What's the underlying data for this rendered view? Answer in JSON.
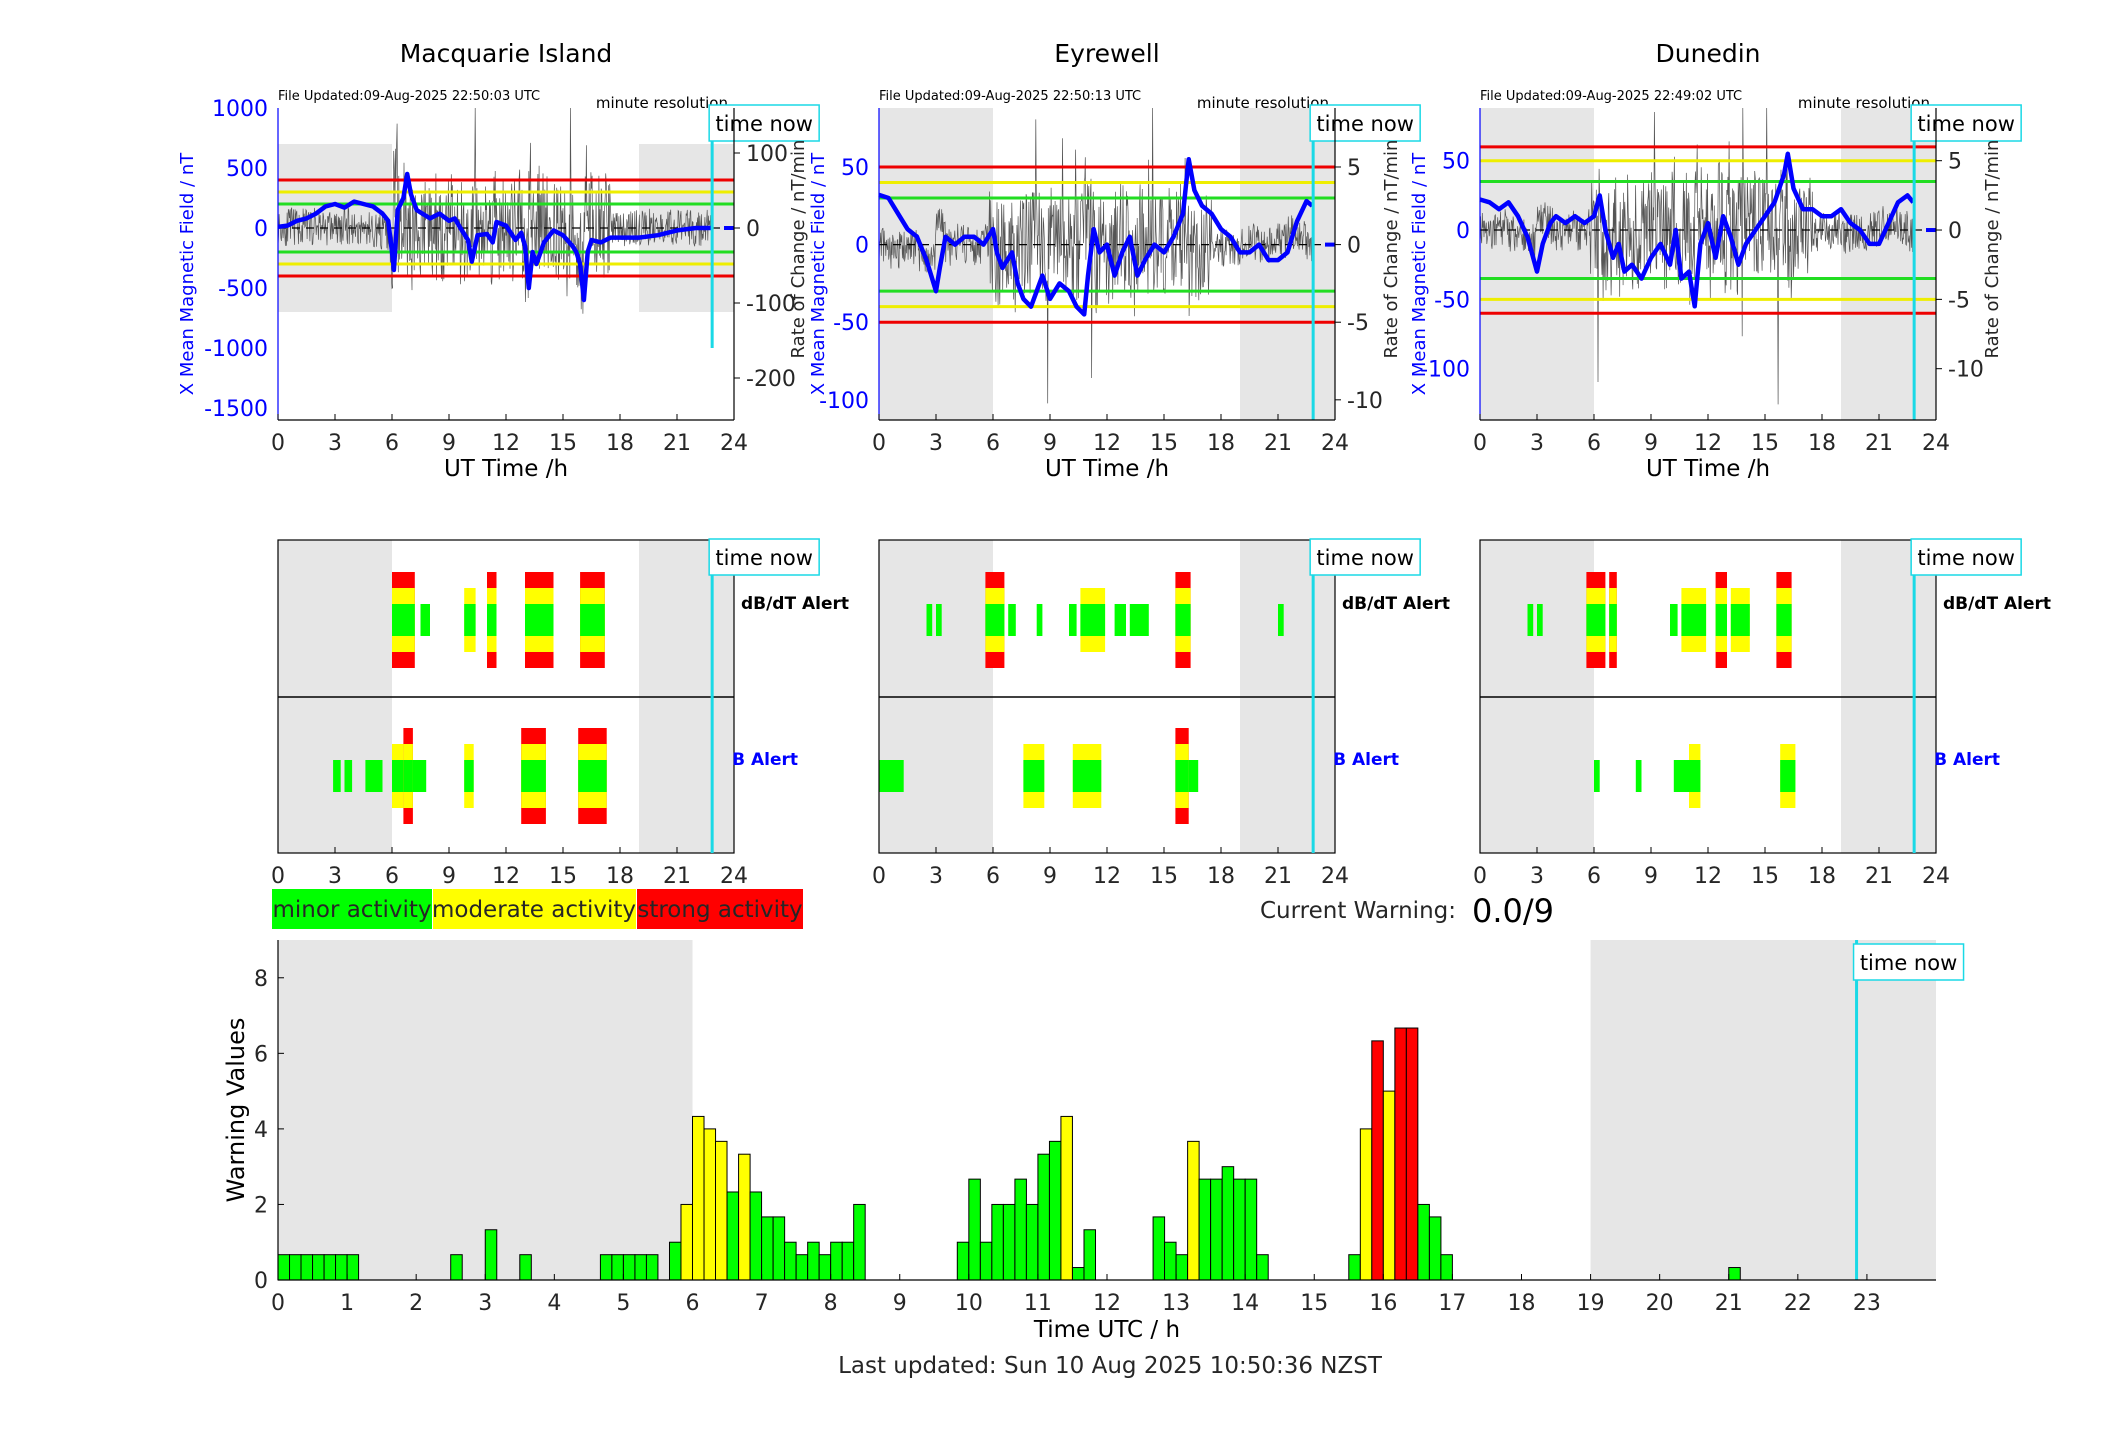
{
  "time_now_label": "time now",
  "legend": {
    "minor": "minor activity",
    "moderate": "moderate activity",
    "strong": "strong activity"
  },
  "current_warning": {
    "label": "Current Warning:",
    "value": "0.0/9"
  },
  "last_updated": "Last updated: Sun 10 Aug 2025 10:50:36 NZST",
  "colors": {
    "minor": "#00ff00",
    "moderate": "#ffff00",
    "strong": "#ff0000",
    "field_line": "#0000ff",
    "time_now": "#1ad9e6",
    "shade": "#e6e6e6"
  },
  "chart_data": [
    {
      "type": "line",
      "title": "Macquarie Island",
      "file_updated": "File Updated:09-Aug-2025 22:50:03 UTC",
      "resolution": "minute resolution",
      "xlabel": "UT Time /h",
      "ylabel_left": "X Mean Magnetic Field / nT",
      "ylabel_right": "Rate of Change / nT/min",
      "xlim": [
        0,
        24
      ],
      "xticks": [
        0,
        3,
        6,
        9,
        12,
        15,
        18,
        21,
        24
      ],
      "ylim_left": [
        -1600,
        1000
      ],
      "yticks_left": [
        1000,
        500,
        0,
        -500,
        -1000,
        -1500
      ],
      "ylim_right": [
        -256,
        160
      ],
      "yticks_right": [
        100,
        0,
        -100,
        -200
      ],
      "thresholds": {
        "green": 200,
        "yellow": 300,
        "red": 400
      },
      "night_shading": [
        [
          0,
          6
        ],
        [
          19,
          24
        ]
      ],
      "time_now": 22.85,
      "field_x_nT": [
        [
          0,
          10
        ],
        [
          0.5,
          20
        ],
        [
          1,
          60
        ],
        [
          1.5,
          80
        ],
        [
          2,
          120
        ],
        [
          2.5,
          180
        ],
        [
          3,
          200
        ],
        [
          3.5,
          170
        ],
        [
          4,
          220
        ],
        [
          4.5,
          200
        ],
        [
          5,
          180
        ],
        [
          5.5,
          120
        ],
        [
          5.8,
          60
        ],
        [
          6,
          -200
        ],
        [
          6.1,
          -350
        ],
        [
          6.3,
          150
        ],
        [
          6.6,
          250
        ],
        [
          6.8,
          450
        ],
        [
          7,
          280
        ],
        [
          7.3,
          150
        ],
        [
          7.6,
          120
        ],
        [
          8,
          80
        ],
        [
          8.5,
          120
        ],
        [
          9,
          60
        ],
        [
          9.3,
          80
        ],
        [
          9.6,
          0
        ],
        [
          10,
          -100
        ],
        [
          10.2,
          -280
        ],
        [
          10.5,
          -60
        ],
        [
          11,
          -50
        ],
        [
          11.3,
          -120
        ],
        [
          11.5,
          50
        ],
        [
          12,
          20
        ],
        [
          12.5,
          -100
        ],
        [
          12.8,
          -40
        ],
        [
          13,
          -150
        ],
        [
          13.2,
          -500
        ],
        [
          13.4,
          -200
        ],
        [
          13.6,
          -300
        ],
        [
          14,
          -120
        ],
        [
          14.5,
          -20
        ],
        [
          15,
          -60
        ],
        [
          15.5,
          -150
        ],
        [
          15.7,
          -200
        ],
        [
          15.9,
          -300
        ],
        [
          16.1,
          -600
        ],
        [
          16.3,
          -200
        ],
        [
          16.5,
          -100
        ],
        [
          17,
          -120
        ],
        [
          17.5,
          -80
        ],
        [
          18,
          -80
        ],
        [
          19,
          -80
        ],
        [
          20,
          -60
        ],
        [
          21,
          -20
        ],
        [
          22,
          0
        ],
        [
          22.8,
          0
        ]
      ],
      "blue_bars": {
        "dbdt_rows": 0,
        "b_rows": 0
      }
    },
    {
      "type": "line",
      "title": "Eyrewell",
      "file_updated": "File Updated:09-Aug-2025 22:50:13 UTC",
      "resolution": "minute resolution",
      "xlabel": "UT Time /h",
      "ylabel_left": "X Mean Magnetic Field / nT",
      "ylabel_right": "Rate of Change / nT/min",
      "xlim": [
        0,
        24
      ],
      "xticks": [
        0,
        3,
        6,
        9,
        12,
        15,
        18,
        21,
        24
      ],
      "ylim_left": [
        -113,
        88
      ],
      "yticks_left": [
        50,
        0,
        -50,
        -100
      ],
      "ylim_right": [
        -11.3,
        8.8
      ],
      "yticks_right": [
        5,
        0,
        -5,
        -10
      ],
      "thresholds": {
        "green": 30,
        "yellow": 40,
        "red": 50
      },
      "night_shading": [
        [
          0,
          6
        ],
        [
          19,
          24
        ]
      ],
      "time_now": 22.85,
      "field_x_nT": [
        [
          0,
          32
        ],
        [
          0.5,
          30
        ],
        [
          1,
          20
        ],
        [
          1.5,
          10
        ],
        [
          2,
          5
        ],
        [
          2.5,
          -10
        ],
        [
          3,
          -30
        ],
        [
          3.2,
          -15
        ],
        [
          3.5,
          5
        ],
        [
          4,
          0
        ],
        [
          4.5,
          5
        ],
        [
          5,
          5
        ],
        [
          5.5,
          0
        ],
        [
          6,
          10
        ],
        [
          6.2,
          -5
        ],
        [
          6.5,
          -15
        ],
        [
          7,
          -5
        ],
        [
          7.3,
          -25
        ],
        [
          7.6,
          -35
        ],
        [
          8,
          -40
        ],
        [
          8.3,
          -30
        ],
        [
          8.6,
          -20
        ],
        [
          9,
          -35
        ],
        [
          9.5,
          -25
        ],
        [
          10,
          -30
        ],
        [
          10.4,
          -40
        ],
        [
          10.8,
          -45
        ],
        [
          11,
          -20
        ],
        [
          11.3,
          10
        ],
        [
          11.6,
          -5
        ],
        [
          12,
          0
        ],
        [
          12.4,
          -20
        ],
        [
          12.8,
          -5
        ],
        [
          13.2,
          5
        ],
        [
          13.6,
          -20
        ],
        [
          14,
          -10
        ],
        [
          14.5,
          0
        ],
        [
          15,
          -5
        ],
        [
          15.5,
          5
        ],
        [
          16,
          20
        ],
        [
          16.3,
          55
        ],
        [
          16.6,
          35
        ],
        [
          17,
          25
        ],
        [
          17.5,
          20
        ],
        [
          18,
          10
        ],
        [
          18.5,
          5
        ],
        [
          19,
          -5
        ],
        [
          19.5,
          -5
        ],
        [
          20,
          0
        ],
        [
          20.5,
          -10
        ],
        [
          21,
          -10
        ],
        [
          21.5,
          -5
        ],
        [
          22,
          15
        ],
        [
          22.5,
          28
        ],
        [
          22.8,
          25
        ]
      ]
    },
    {
      "type": "line",
      "title": "Dunedin",
      "file_updated": "File Updated:09-Aug-2025 22:49:02 UTC",
      "resolution": "minute resolution",
      "xlabel": "UT Time /h",
      "ylabel_left": "X Mean Magnetic Field / nT",
      "ylabel_right": "Rate of Change / nT/min",
      "xlim": [
        0,
        24
      ],
      "xticks": [
        0,
        3,
        6,
        9,
        12,
        15,
        18,
        21,
        24
      ],
      "ylim_left": [
        -137,
        88
      ],
      "yticks_left": [
        50,
        0,
        -50,
        -100
      ],
      "ylim_right": [
        -13.7,
        8.8
      ],
      "yticks_right": [
        5,
        0,
        -5,
        -10
      ],
      "thresholds": {
        "green": 35,
        "yellow": 50,
        "red": 60
      },
      "night_shading": [
        [
          0,
          6
        ],
        [
          19,
          24
        ]
      ],
      "time_now": 22.85,
      "field_x_nT": [
        [
          0,
          22
        ],
        [
          0.5,
          20
        ],
        [
          1,
          15
        ],
        [
          1.5,
          20
        ],
        [
          2,
          10
        ],
        [
          2.5,
          -5
        ],
        [
          3,
          -30
        ],
        [
          3.3,
          -10
        ],
        [
          3.7,
          5
        ],
        [
          4,
          10
        ],
        [
          4.5,
          5
        ],
        [
          5,
          10
        ],
        [
          5.5,
          5
        ],
        [
          6,
          10
        ],
        [
          6.3,
          25
        ],
        [
          6.6,
          0
        ],
        [
          7,
          -20
        ],
        [
          7.3,
          -10
        ],
        [
          7.6,
          -30
        ],
        [
          8,
          -25
        ],
        [
          8.5,
          -35
        ],
        [
          9,
          -20
        ],
        [
          9.5,
          -10
        ],
        [
          10,
          -25
        ],
        [
          10.3,
          0
        ],
        [
          10.6,
          -35
        ],
        [
          11,
          -30
        ],
        [
          11.3,
          -55
        ],
        [
          11.6,
          -10
        ],
        [
          12,
          5
        ],
        [
          12.4,
          -20
        ],
        [
          12.8,
          10
        ],
        [
          13.2,
          -5
        ],
        [
          13.6,
          -25
        ],
        [
          14,
          -10
        ],
        [
          14.5,
          0
        ],
        [
          15,
          10
        ],
        [
          15.5,
          20
        ],
        [
          16,
          40
        ],
        [
          16.2,
          55
        ],
        [
          16.5,
          30
        ],
        [
          17,
          15
        ],
        [
          17.5,
          15
        ],
        [
          18,
          10
        ],
        [
          18.5,
          10
        ],
        [
          19,
          15
        ],
        [
          19.5,
          5
        ],
        [
          20,
          0
        ],
        [
          20.5,
          -10
        ],
        [
          21,
          -10
        ],
        [
          21.5,
          5
        ],
        [
          22,
          20
        ],
        [
          22.5,
          25
        ],
        [
          22.8,
          20
        ]
      ]
    },
    {
      "type": "bar",
      "title": "",
      "xlabel": "Time UTC / h",
      "ylabel": "Warning Values",
      "xlim": [
        0,
        24
      ],
      "xticks": [
        0,
        1,
        2,
        3,
        4,
        5,
        6,
        7,
        8,
        9,
        10,
        11,
        12,
        13,
        14,
        15,
        16,
        17,
        18,
        19,
        20,
        21,
        22,
        23
      ],
      "ylim": [
        0,
        9
      ],
      "yticks": [
        0,
        2,
        4,
        6,
        8
      ],
      "night_shading": [
        [
          0,
          6
        ],
        [
          19,
          24
        ]
      ],
      "time_now": 22.85,
      "bins_start_h": [
        0,
        0.167,
        0.333,
        0.5,
        0.667,
        0.833,
        1.0,
        2.5,
        3.0,
        3.5,
        4.667,
        4.833,
        5.0,
        5.167,
        5.333,
        5.667,
        5.833,
        6.0,
        6.167,
        6.333,
        6.5,
        6.667,
        6.833,
        7.0,
        7.167,
        7.333,
        7.5,
        7.667,
        7.833,
        8.0,
        8.167,
        8.333,
        9.833,
        10.0,
        10.167,
        10.333,
        10.5,
        10.667,
        10.833,
        11.0,
        11.167,
        11.333,
        11.5,
        11.667,
        12.667,
        12.833,
        13.0,
        13.167,
        13.333,
        13.5,
        13.667,
        13.833,
        14.0,
        14.167,
        15.5,
        15.667,
        15.833,
        16.0,
        16.167,
        16.333,
        16.5,
        16.667,
        16.833,
        21.0
      ],
      "values": [
        0.67,
        0.67,
        0.67,
        0.67,
        0.67,
        0.67,
        0.67,
        0.67,
        1.33,
        0.67,
        0.67,
        0.67,
        0.67,
        0.67,
        0.67,
        1.0,
        2.0,
        4.33,
        4.0,
        3.67,
        2.33,
        3.33,
        2.33,
        1.67,
        1.67,
        1.0,
        0.67,
        1.0,
        0.67,
        1.0,
        1.0,
        2.0,
        1.0,
        2.67,
        1.0,
        2.0,
        2.0,
        2.67,
        2.0,
        3.33,
        3.67,
        4.33,
        0.33,
        1.33,
        1.67,
        1.0,
        0.67,
        3.67,
        2.67,
        2.67,
        3.0,
        2.67,
        2.67,
        0.67,
        0.67,
        4.0,
        6.33,
        5.0,
        6.67,
        6.67,
        2.0,
        1.67,
        0.67,
        0.33
      ],
      "levels": [
        "minor",
        "minor",
        "minor",
        "minor",
        "minor",
        "minor",
        "minor",
        "minor",
        "minor",
        "minor",
        "minor",
        "minor",
        "minor",
        "minor",
        "minor",
        "minor",
        "moderate",
        "moderate",
        "moderate",
        "moderate",
        "minor",
        "moderate",
        "minor",
        "minor",
        "minor",
        "minor",
        "minor",
        "minor",
        "minor",
        "minor",
        "minor",
        "minor",
        "minor",
        "minor",
        "minor",
        "minor",
        "minor",
        "minor",
        "minor",
        "minor",
        "minor",
        "moderate",
        "minor",
        "minor",
        "minor",
        "minor",
        "minor",
        "moderate",
        "minor",
        "minor",
        "minor",
        "minor",
        "minor",
        "minor",
        "minor",
        "moderate",
        "strong",
        "moderate",
        "strong",
        "strong",
        "minor",
        "minor",
        "minor",
        "minor"
      ]
    }
  ],
  "alerts": {
    "dbdt_label": "dB/dT Alert",
    "b_label": "B Alert",
    "stations": [
      {
        "dbdt": [
          [
            6.0,
            7.2,
            3
          ],
          [
            7.5,
            8.0,
            1
          ],
          [
            9.8,
            10.4,
            2
          ],
          [
            11.0,
            11.5,
            3
          ],
          [
            13.0,
            14.5,
            3
          ],
          [
            15.9,
            17.2,
            3
          ]
        ],
        "b": [
          [
            2.9,
            3.3,
            1
          ],
          [
            3.5,
            3.9,
            1
          ],
          [
            4.6,
            5.5,
            1
          ],
          [
            6.0,
            6.6,
            2
          ],
          [
            6.6,
            7.1,
            3
          ],
          [
            7.1,
            7.8,
            1
          ],
          [
            9.8,
            10.3,
            2
          ],
          [
            12.8,
            14.1,
            3
          ],
          [
            15.8,
            17.3,
            3
          ]
        ]
      },
      {
        "dbdt": [
          [
            2.5,
            2.8,
            1
          ],
          [
            3.0,
            3.3,
            1
          ],
          [
            5.6,
            6.6,
            3
          ],
          [
            6.8,
            7.2,
            1
          ],
          [
            8.3,
            8.6,
            1
          ],
          [
            10.0,
            10.4,
            1
          ],
          [
            10.6,
            11.9,
            2
          ],
          [
            12.4,
            13.0,
            1
          ],
          [
            13.2,
            14.2,
            1
          ],
          [
            15.6,
            16.4,
            3
          ],
          [
            21.0,
            21.3,
            1
          ]
        ],
        "b": [
          [
            0,
            1.3,
            1
          ],
          [
            7.6,
            8.7,
            2
          ],
          [
            10.2,
            11.7,
            2
          ],
          [
            15.6,
            16.3,
            3
          ],
          [
            16.3,
            16.8,
            1
          ]
        ]
      },
      {
        "dbdt": [
          [
            2.5,
            2.8,
            1
          ],
          [
            3.0,
            3.3,
            1
          ],
          [
            5.6,
            6.6,
            3
          ],
          [
            6.8,
            7.2,
            3
          ],
          [
            10.0,
            10.4,
            1
          ],
          [
            10.6,
            11.9,
            2
          ],
          [
            12.4,
            13.0,
            3
          ],
          [
            13.2,
            14.2,
            2
          ],
          [
            15.6,
            16.4,
            3
          ]
        ],
        "b": [
          [
            6.0,
            6.3,
            1
          ],
          [
            8.2,
            8.5,
            1
          ],
          [
            10.2,
            11.0,
            1
          ],
          [
            11.0,
            11.6,
            2
          ],
          [
            15.8,
            16.6,
            2
          ]
        ]
      }
    ]
  }
}
